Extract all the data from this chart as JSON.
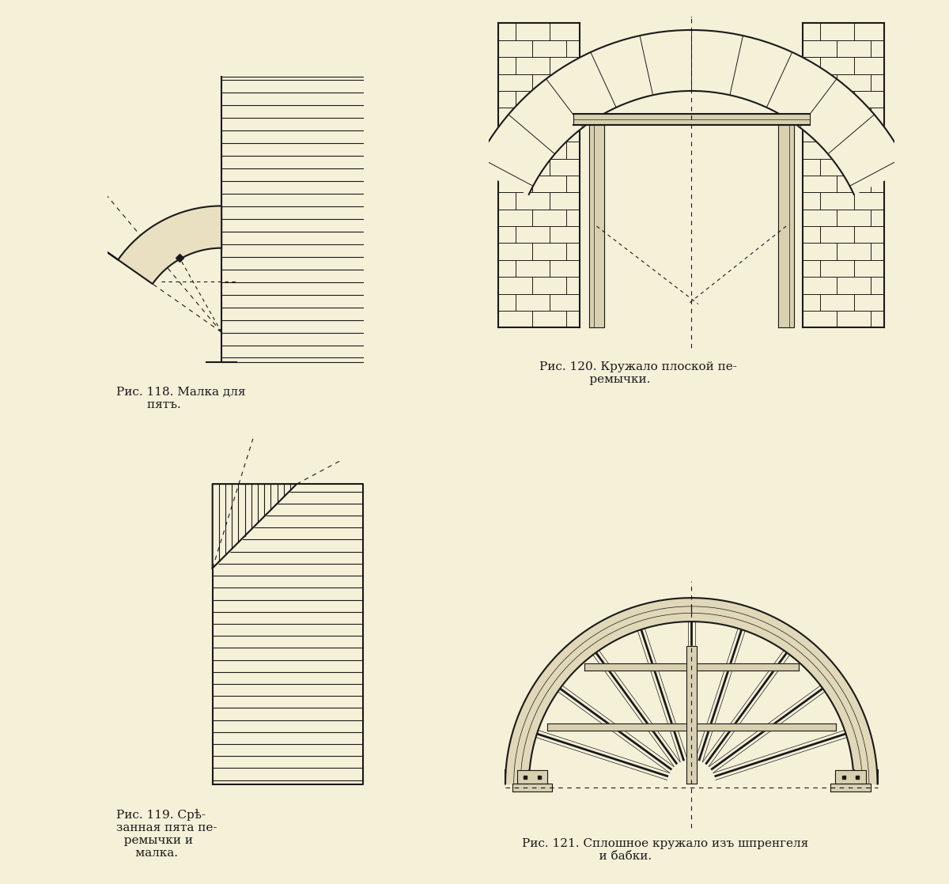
{
  "bg_color": "#f5f0d8",
  "line_color": "#1a1a1a",
  "title1": "Рис. 118. Малка для\n        пятъ.",
  "title2": "Рис. 120. Кружало плоской пе-\n             ремычки.",
  "title3": "Рис. 119. Срѣ-\nзанная пята пе-\n  ремычки и\n     малка.",
  "title4": "Рис. 121. Сплошное кружало изъ шпренгеля\n                    и бабки.",
  "text_color": "#1a1a1a",
  "lw": 1.5,
  "thin": 0.8
}
